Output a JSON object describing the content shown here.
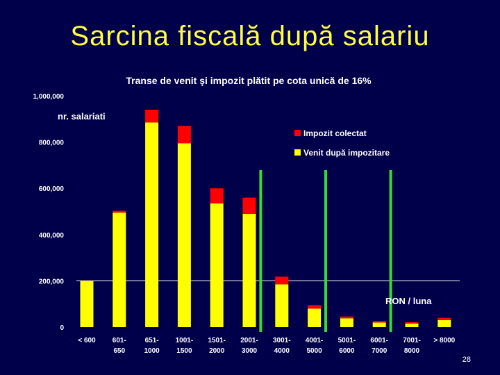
{
  "slide": {
    "title": "Sarcina fiscală după salariu",
    "page_number": "28"
  },
  "chart_data": {
    "type": "bar",
    "stacked": true,
    "title": "Transe de venit şi impozit plătit pe cota unică de 16%",
    "ylabel": "nr. salariati",
    "xlabel": "RON / luna",
    "ylim": [
      0,
      1000000
    ],
    "yticks": [
      "0",
      "200,000",
      "400,000",
      "600,000",
      "800,000",
      "1,000,000"
    ],
    "categories": [
      [
        "< 600"
      ],
      [
        "601-",
        "650"
      ],
      [
        "651-",
        "1000"
      ],
      [
        "1001-",
        "1500"
      ],
      [
        "1501-",
        "2000"
      ],
      [
        "2001-",
        "3000"
      ],
      [
        "3001-",
        "4000"
      ],
      [
        "4001-",
        "5000"
      ],
      [
        "5001-",
        "6000"
      ],
      [
        "6001-",
        "7000"
      ],
      [
        "7001-",
        "8000"
      ],
      [
        "> 8000"
      ]
    ],
    "series": [
      {
        "name": "Venit după impozitare",
        "color": "#ffff00",
        "values": [
          200000,
          495000,
          885000,
          795000,
          535000,
          490000,
          185000,
          80000,
          38000,
          20000,
          15000,
          30000
        ]
      },
      {
        "name": "Impozit colectat",
        "color": "#ff0000",
        "values": [
          0,
          8000,
          55000,
          75000,
          65000,
          70000,
          33000,
          15000,
          8000,
          6000,
          6000,
          10000
        ]
      }
    ],
    "legend_position": "top-right",
    "reference_line_color": "#33dd33",
    "reference_line_after_categories": [
      5,
      7,
      9
    ],
    "horizontal_line_value": 200000
  }
}
